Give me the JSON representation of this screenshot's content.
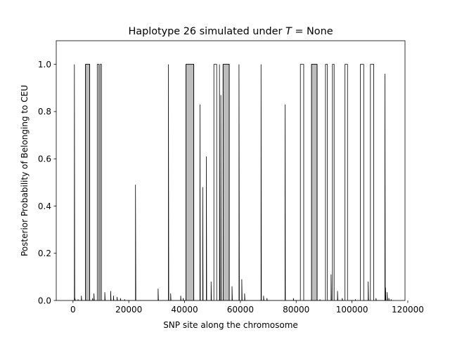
{
  "chart_data": {
    "type": "line",
    "title": "Haplotype 26 simulated under T = None",
    "title_parts": {
      "prefix": "Haplotype 26 simulated under ",
      "var": "T",
      "eq": " = ",
      "value": "None"
    },
    "xlabel": "SNP site along the chromosome",
    "ylabel": "Posterior Probability of Belonging to CEU",
    "xlim": [
      -6000,
      119000
    ],
    "ylim": [
      0.0,
      1.1
    ],
    "xticks": [
      0,
      20000,
      40000,
      60000,
      80000,
      100000,
      120000
    ],
    "xtick_labels": [
      "0",
      "20000",
      "40000",
      "60000",
      "80000",
      "100000",
      "120000"
    ],
    "yticks": [
      0.0,
      0.2,
      0.4,
      0.6,
      0.8,
      1.0
    ],
    "ytick_labels": [
      "0.0",
      "0.2",
      "0.4",
      "0.6",
      "0.8",
      "1.0"
    ],
    "line_color": "#000000",
    "shade_color": "#bdbdbd",
    "shaded_regions": [
      [
        4500,
        6000
      ],
      [
        40500,
        43300
      ],
      [
        53800,
        56000
      ],
      [
        85500,
        87500
      ]
    ],
    "blocks": [
      [
        8700,
        9300
      ],
      [
        9700,
        10200
      ],
      [
        50500,
        51500
      ],
      [
        81500,
        82700
      ],
      [
        90500,
        91200
      ],
      [
        93000,
        93600
      ],
      [
        97500,
        98400
      ],
      [
        103000,
        104200
      ],
      [
        106600,
        107800
      ]
    ],
    "spikes": [
      [
        500,
        1.0
      ],
      [
        700,
        0.01
      ],
      [
        1800,
        0.005
      ],
      [
        3000,
        0.02
      ],
      [
        7000,
        0.01
      ],
      [
        7500,
        0.03
      ],
      [
        11400,
        0.035
      ],
      [
        13500,
        0.04
      ],
      [
        14500,
        0.02
      ],
      [
        15800,
        0.015
      ],
      [
        17000,
        0.01
      ],
      [
        18500,
        0.005
      ],
      [
        22400,
        0.49
      ],
      [
        30500,
        0.05
      ],
      [
        34200,
        1.0
      ],
      [
        35000,
        0.03
      ],
      [
        38600,
        0.02
      ],
      [
        39500,
        0.01
      ],
      [
        45500,
        0.83
      ],
      [
        46500,
        0.48
      ],
      [
        47800,
        0.61
      ],
      [
        49500,
        0.08
      ],
      [
        52500,
        1.0
      ],
      [
        53000,
        0.87
      ],
      [
        57000,
        0.06
      ],
      [
        59500,
        1.0
      ],
      [
        60500,
        0.09
      ],
      [
        61500,
        0.03
      ],
      [
        67400,
        1.0
      ],
      [
        68300,
        0.02
      ],
      [
        69500,
        0.01
      ],
      [
        76000,
        0.83
      ],
      [
        79000,
        0.01
      ],
      [
        88500,
        0.005
      ],
      [
        92500,
        0.11
      ],
      [
        94800,
        0.04
      ],
      [
        96500,
        0.01
      ],
      [
        101200,
        0.005
      ],
      [
        105800,
        0.08
      ],
      [
        108600,
        0.01
      ],
      [
        111800,
        0.96
      ],
      [
        112000,
        0.055
      ],
      [
        112600,
        0.035
      ],
      [
        113200,
        0.01
      ],
      [
        114000,
        0.005
      ]
    ],
    "x_start": 0,
    "x_end": 114500
  }
}
